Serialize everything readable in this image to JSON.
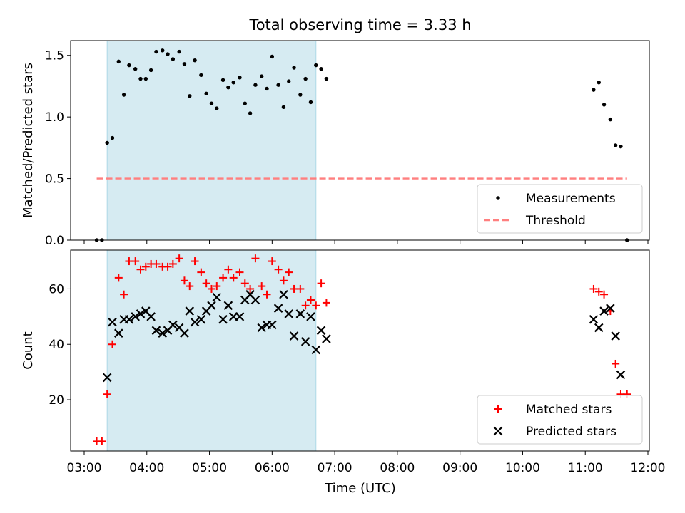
{
  "chart_data": [
    {
      "type": "scatter",
      "title": "Total observing time = 3.33 h",
      "xlabel": "",
      "ylabel": "Matched/Predicted stars",
      "xlim": [
        "03:00",
        "12:00"
      ],
      "ylim": [
        0,
        1.62
      ],
      "x_ticks": [
        "03:00",
        "04:00",
        "05:00",
        "06:00",
        "07:00",
        "08:00",
        "09:00",
        "10:00",
        "11:00",
        "12:00"
      ],
      "y_ticks": [
        "0.0",
        "0.5",
        "1.0",
        "1.5"
      ],
      "y_tick_values": [
        0,
        0.5,
        1.0,
        1.5
      ],
      "shaded_span": [
        "03:22",
        "06:42"
      ],
      "legend_position": "lower right",
      "series": [
        {
          "name": "Measurements",
          "marker": "dot",
          "color": "#000000",
          "points": [
            [
              "03:12",
              0.0
            ],
            [
              "03:17",
              0.0
            ],
            [
              "03:22",
              0.79
            ],
            [
              "03:27",
              0.83
            ],
            [
              "03:33",
              1.45
            ],
            [
              "03:38",
              1.18
            ],
            [
              "03:43",
              1.42
            ],
            [
              "03:49",
              1.39
            ],
            [
              "03:54",
              1.31
            ],
            [
              "03:59",
              1.31
            ],
            [
              "04:04",
              1.38
            ],
            [
              "04:09",
              1.53
            ],
            [
              "04:15",
              1.54
            ],
            [
              "04:20",
              1.51
            ],
            [
              "04:25",
              1.47
            ],
            [
              "04:31",
              1.53
            ],
            [
              "04:36",
              1.43
            ],
            [
              "04:41",
              1.17
            ],
            [
              "04:46",
              1.46
            ],
            [
              "04:52",
              1.34
            ],
            [
              "04:57",
              1.19
            ],
            [
              "05:02",
              1.11
            ],
            [
              "05:07",
              1.07
            ],
            [
              "05:13",
              1.3
            ],
            [
              "05:18",
              1.24
            ],
            [
              "05:23",
              1.28
            ],
            [
              "05:29",
              1.32
            ],
            [
              "05:34",
              1.11
            ],
            [
              "05:39",
              1.03
            ],
            [
              "05:44",
              1.26
            ],
            [
              "05:50",
              1.33
            ],
            [
              "05:55",
              1.23
            ],
            [
              "06:00",
              1.49
            ],
            [
              "06:06",
              1.26
            ],
            [
              "06:11",
              1.08
            ],
            [
              "06:16",
              1.29
            ],
            [
              "06:21",
              1.4
            ],
            [
              "06:27",
              1.18
            ],
            [
              "06:32",
              1.31
            ],
            [
              "06:37",
              1.12
            ],
            [
              "06:42",
              1.42
            ],
            [
              "06:47",
              1.39
            ],
            [
              "06:52",
              1.31
            ],
            [
              "11:08",
              1.22
            ],
            [
              "11:13",
              1.28
            ],
            [
              "11:18",
              1.1
            ],
            [
              "11:24",
              0.98
            ],
            [
              "11:29",
              0.77
            ],
            [
              "11:34",
              0.76
            ],
            [
              "11:40",
              0.0
            ]
          ]
        },
        {
          "name": "Threshold",
          "marker": "dashed-line",
          "color": "#ff7f7f",
          "points": [
            [
              "03:12",
              0.5
            ],
            [
              "11:40",
              0.5
            ]
          ]
        }
      ]
    },
    {
      "type": "scatter",
      "title": "",
      "xlabel": "Time (UTC)",
      "ylabel": "Count",
      "xlim": [
        "03:00",
        "12:00"
      ],
      "ylim": [
        1.5,
        74
      ],
      "x_ticks": [
        "03:00",
        "04:00",
        "05:00",
        "06:00",
        "07:00",
        "08:00",
        "09:00",
        "10:00",
        "11:00",
        "12:00"
      ],
      "y_ticks": [
        "20",
        "40",
        "60"
      ],
      "y_tick_values": [
        20,
        40,
        60
      ],
      "shaded_span": [
        "03:22",
        "06:42"
      ],
      "legend_position": "lower right",
      "series": [
        {
          "name": "Matched stars",
          "marker": "plus",
          "color": "#ff0000",
          "points": [
            [
              "03:12",
              5
            ],
            [
              "03:17",
              5
            ],
            [
              "03:22",
              22
            ],
            [
              "03:27",
              40
            ],
            [
              "03:33",
              64
            ],
            [
              "03:38",
              58
            ],
            [
              "03:43",
              70
            ],
            [
              "03:49",
              70
            ],
            [
              "03:54",
              67
            ],
            [
              "03:59",
              68
            ],
            [
              "04:04",
              69
            ],
            [
              "04:09",
              69
            ],
            [
              "04:15",
              68
            ],
            [
              "04:20",
              68
            ],
            [
              "04:25",
              69
            ],
            [
              "04:31",
              71
            ],
            [
              "04:36",
              63
            ],
            [
              "04:41",
              61
            ],
            [
              "04:46",
              70
            ],
            [
              "04:52",
              66
            ],
            [
              "04:57",
              62
            ],
            [
              "05:02",
              60
            ],
            [
              "05:07",
              61
            ],
            [
              "05:13",
              64
            ],
            [
              "05:18",
              67
            ],
            [
              "05:23",
              64
            ],
            [
              "05:29",
              66
            ],
            [
              "05:34",
              62
            ],
            [
              "05:39",
              60
            ],
            [
              "05:44",
              71
            ],
            [
              "05:50",
              61
            ],
            [
              "05:55",
              58
            ],
            [
              "06:00",
              70
            ],
            [
              "06:06",
              67
            ],
            [
              "06:11",
              63
            ],
            [
              "06:16",
              66
            ],
            [
              "06:21",
              60
            ],
            [
              "06:27",
              60
            ],
            [
              "06:32",
              54
            ],
            [
              "06:37",
              56
            ],
            [
              "06:42",
              54
            ],
            [
              "06:47",
              62
            ],
            [
              "06:52",
              55
            ],
            [
              "11:08",
              60
            ],
            [
              "11:13",
              59
            ],
            [
              "11:18",
              58
            ],
            [
              "11:24",
              52
            ],
            [
              "11:29",
              33
            ],
            [
              "11:34",
              22
            ],
            [
              "11:40",
              22
            ]
          ]
        },
        {
          "name": "Predicted stars",
          "marker": "x",
          "color": "#000000",
          "points": [
            [
              "03:22",
              28
            ],
            [
              "03:27",
              48
            ],
            [
              "03:33",
              44
            ],
            [
              "03:38",
              49
            ],
            [
              "03:43",
              49
            ],
            [
              "03:49",
              50
            ],
            [
              "03:54",
              51
            ],
            [
              "03:59",
              52
            ],
            [
              "04:04",
              50
            ],
            [
              "04:09",
              45
            ],
            [
              "04:15",
              44
            ],
            [
              "04:20",
              45
            ],
            [
              "04:25",
              47
            ],
            [
              "04:31",
              46
            ],
            [
              "04:36",
              44
            ],
            [
              "04:41",
              52
            ],
            [
              "04:46",
              48
            ],
            [
              "04:52",
              49
            ],
            [
              "04:57",
              52
            ],
            [
              "05:02",
              54
            ],
            [
              "05:07",
              57
            ],
            [
              "05:13",
              49
            ],
            [
              "05:18",
              54
            ],
            [
              "05:23",
              50
            ],
            [
              "05:29",
              50
            ],
            [
              "05:34",
              56
            ],
            [
              "05:39",
              58
            ],
            [
              "05:44",
              56
            ],
            [
              "05:50",
              46
            ],
            [
              "05:55",
              47
            ],
            [
              "06:00",
              47
            ],
            [
              "06:06",
              53
            ],
            [
              "06:11",
              58
            ],
            [
              "06:16",
              51
            ],
            [
              "06:21",
              43
            ],
            [
              "06:27",
              51
            ],
            [
              "06:32",
              41
            ],
            [
              "06:37",
              50
            ],
            [
              "06:42",
              38
            ],
            [
              "06:47",
              45
            ],
            [
              "06:52",
              42
            ],
            [
              "11:08",
              49
            ],
            [
              "11:13",
              46
            ],
            [
              "11:18",
              52
            ],
            [
              "11:24",
              53
            ],
            [
              "11:29",
              43
            ],
            [
              "11:34",
              29
            ]
          ]
        }
      ]
    }
  ],
  "colors": {
    "shade_fill": "#add8e6",
    "measurement": "#000000",
    "threshold": "#ff7f7f",
    "matched": "#ff0000",
    "predicted": "#000000"
  }
}
